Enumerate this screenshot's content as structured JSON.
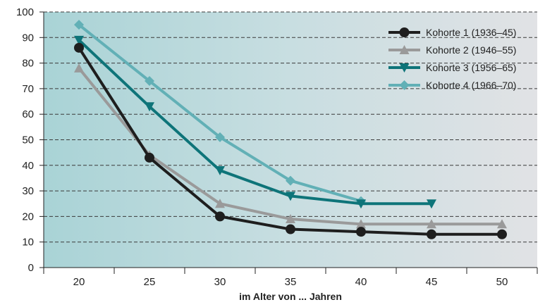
{
  "chart_data": {
    "type": "line",
    "title": "",
    "xlabel": "im Alter von ... Jahren",
    "ylabel": "",
    "x": [
      20,
      25,
      30,
      35,
      40,
      45,
      50
    ],
    "ylim": [
      0,
      100
    ],
    "yticks": [
      0,
      10,
      20,
      30,
      40,
      50,
      60,
      70,
      80,
      90,
      100
    ],
    "grid": "horizontal-dashed",
    "legend_position": "top-right",
    "series": [
      {
        "name": "Kohorte 1 (1936–45)",
        "color": "#1e1e1e",
        "marker": "circle",
        "values": [
          86,
          43,
          20,
          15,
          14,
          13,
          13
        ]
      },
      {
        "name": "Kohorte 2 (1946–55)",
        "color": "#9a9a9a",
        "marker": "triangle-up",
        "values": [
          78,
          44,
          25,
          19,
          17,
          17,
          17
        ]
      },
      {
        "name": "Kohorte 3 (1956–65)",
        "color": "#0e7479",
        "marker": "triangle-down",
        "values": [
          89,
          63,
          38,
          28,
          25,
          25,
          null
        ]
      },
      {
        "name": "Kohorte 4 (1966–70)",
        "color": "#62b0b6",
        "marker": "diamond",
        "values": [
          95,
          73,
          51,
          34,
          26,
          null,
          null
        ]
      }
    ]
  }
}
